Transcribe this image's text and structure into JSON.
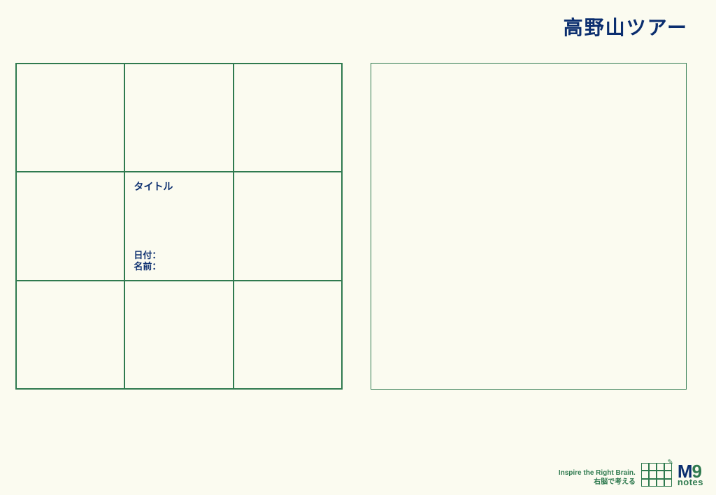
{
  "colors": {
    "background": "#fbfbf0",
    "border_green": "#2f7a4f",
    "text_navy": "#0b2e6f"
  },
  "header": {
    "title": "高野山ツアー"
  },
  "grid": {
    "type": "3x3-grid",
    "border_color": "#2f7a4f",
    "cell_color": "#2f7a4f",
    "center_cell": {
      "title_label": "タイトル",
      "date_label": "日付：",
      "name_label": "名前："
    }
  },
  "right_panel": {
    "type": "empty-box",
    "border_color": "#2f7a4f"
  },
  "footer": {
    "tagline_en": "Inspire the Right Brain.",
    "tagline_jp": "右脳で考える",
    "logo": {
      "main": "M",
      "accent": "9",
      "sub": "notes"
    }
  }
}
